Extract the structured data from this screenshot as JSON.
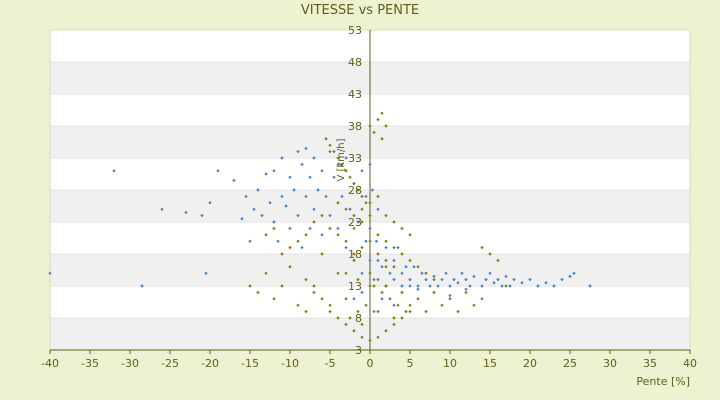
{
  "chart_data": {
    "type": "scatter",
    "title": "VITESSE vs PENTE",
    "xlabel": "Pente [%]",
    "ylabel": "V [km/h]",
    "xlim": [
      -40,
      40
    ],
    "ylim": [
      3,
      53
    ],
    "x_ticks": [
      -40,
      -35,
      -30,
      -25,
      -20,
      -15,
      -10,
      -5,
      0,
      5,
      10,
      15,
      20,
      25,
      30,
      35,
      40
    ],
    "y_ticks": [
      3,
      8,
      13,
      18,
      23,
      28,
      33,
      38,
      43,
      48,
      53
    ],
    "x_tick_labels": [
      "-40",
      "-35",
      "-30",
      "-25",
      "-20",
      "-15",
      "-10",
      "-5",
      "0",
      "5",
      "10",
      "15",
      "20",
      "25",
      "30",
      "35",
      "40"
    ],
    "y_tick_labels": [
      "3",
      "8",
      "13",
      "18",
      "23",
      "28",
      "33",
      "38",
      "43",
      "48",
      "53"
    ],
    "grid": "horizontal bands",
    "band_colors": [
      "#ffffff",
      "#f0f0f0"
    ],
    "series": [
      {
        "color": "#3d85c6",
        "points": [
          [
            -40,
            15
          ],
          [
            -32,
            31
          ],
          [
            -28.5,
            13
          ],
          [
            -26,
            25
          ],
          [
            -23,
            24.5
          ],
          [
            -21,
            24
          ],
          [
            -20.5,
            15
          ],
          [
            -20,
            26
          ],
          [
            -19,
            31
          ],
          [
            -17,
            29.5
          ],
          [
            -16,
            23.5
          ],
          [
            -15.5,
            27
          ],
          [
            -15,
            20
          ],
          [
            -14.5,
            25
          ],
          [
            -14,
            28
          ],
          [
            -13.5,
            24
          ],
          [
            -13,
            30.5
          ],
          [
            -12.5,
            26
          ],
          [
            -12,
            31
          ],
          [
            -12,
            23
          ],
          [
            -11.5,
            20
          ],
          [
            -11,
            27
          ],
          [
            -11,
            33
          ],
          [
            -10.5,
            25.5
          ],
          [
            -10,
            30
          ],
          [
            -10,
            22
          ],
          [
            -9.5,
            28
          ],
          [
            -9,
            34
          ],
          [
            -9,
            24
          ],
          [
            -8.5,
            32
          ],
          [
            -8.5,
            19
          ],
          [
            -8,
            27
          ],
          [
            -8,
            34.5
          ],
          [
            -7.5,
            30
          ],
          [
            -7.5,
            22
          ],
          [
            -7,
            33
          ],
          [
            -7,
            25
          ],
          [
            -6.5,
            28
          ],
          [
            -6,
            31
          ],
          [
            -6,
            21
          ],
          [
            -5.5,
            27
          ],
          [
            -5,
            34
          ],
          [
            -5,
            24
          ],
          [
            -4.5,
            30
          ],
          [
            -4,
            32
          ],
          [
            -4,
            22
          ],
          [
            -3.5,
            27
          ],
          [
            -3,
            33
          ],
          [
            -3,
            19
          ],
          [
            -2.5,
            25
          ],
          [
            -2,
            29
          ],
          [
            -2,
            17
          ],
          [
            -1.5,
            23
          ],
          [
            -1,
            31
          ],
          [
            -1,
            15
          ],
          [
            -0.5,
            27
          ],
          [
            -0.5,
            20
          ],
          [
            0,
            32
          ],
          [
            0,
            22
          ],
          [
            0,
            17
          ],
          [
            0.3,
            28
          ],
          [
            0.5,
            14
          ],
          [
            0.8,
            20
          ],
          [
            1,
            17
          ],
          [
            1,
            25
          ],
          [
            1.5,
            16
          ],
          [
            2,
            19
          ],
          [
            2,
            13
          ],
          [
            2.5,
            15
          ],
          [
            3,
            17
          ],
          [
            3,
            14
          ],
          [
            3.5,
            19
          ],
          [
            4,
            15
          ],
          [
            4,
            13
          ],
          [
            4.5,
            16
          ],
          [
            5,
            14
          ],
          [
            5,
            13
          ],
          [
            5.5,
            16
          ],
          [
            6,
            13
          ],
          [
            6.5,
            15
          ],
          [
            7,
            14
          ],
          [
            7.5,
            13
          ],
          [
            8,
            14.5
          ],
          [
            8.5,
            13
          ],
          [
            9,
            14
          ],
          [
            9.5,
            15
          ],
          [
            10,
            13
          ],
          [
            10.5,
            14
          ],
          [
            11,
            13.5
          ],
          [
            11.5,
            15
          ],
          [
            12,
            14
          ],
          [
            12.5,
            13
          ],
          [
            13,
            14.5
          ],
          [
            14,
            13
          ],
          [
            14.5,
            14
          ],
          [
            15,
            15
          ],
          [
            15.5,
            13.5
          ],
          [
            16,
            14
          ],
          [
            16.5,
            13
          ],
          [
            17,
            14.5
          ],
          [
            17.5,
            13
          ],
          [
            18,
            14
          ],
          [
            19,
            13.5
          ],
          [
            20,
            14
          ],
          [
            21,
            13
          ],
          [
            22,
            13.5
          ],
          [
            23,
            13
          ],
          [
            24,
            14
          ],
          [
            25,
            14.5
          ],
          [
            25.5,
            15
          ],
          [
            27.5,
            13
          ],
          [
            4,
            12
          ],
          [
            6,
            12.5
          ],
          [
            8,
            12
          ],
          [
            10,
            11.5
          ],
          [
            12,
            12.5
          ],
          [
            14,
            11
          ],
          [
            -1,
            12
          ],
          [
            -2,
            11
          ],
          [
            1.5,
            11
          ],
          [
            3,
            10
          ],
          [
            0.5,
            9
          ]
        ]
      },
      {
        "color": "#808000",
        "points": [
          [
            -5.5,
            36
          ],
          [
            -5,
            35
          ],
          [
            -4.5,
            34
          ],
          [
            -4,
            33
          ],
          [
            -3.5,
            32
          ],
          [
            -3,
            31
          ],
          [
            -2.5,
            30
          ],
          [
            -2,
            29
          ],
          [
            -1.5,
            28
          ],
          [
            -1,
            27
          ],
          [
            -0.5,
            26
          ],
          [
            0,
            38
          ],
          [
            0.5,
            37
          ],
          [
            1,
            39
          ],
          [
            1.5,
            40
          ],
          [
            2,
            38
          ],
          [
            1.5,
            36
          ],
          [
            -15,
            13
          ],
          [
            -14,
            12
          ],
          [
            -13,
            15
          ],
          [
            -12,
            11
          ],
          [
            -11,
            13
          ],
          [
            -10,
            16
          ],
          [
            -9,
            10
          ],
          [
            -8,
            14
          ],
          [
            -7,
            12
          ],
          [
            -6,
            18
          ],
          [
            -5,
            9
          ],
          [
            -4,
            15
          ],
          [
            -3,
            11
          ],
          [
            -2,
            17
          ],
          [
            -1,
            7
          ],
          [
            0,
            13
          ],
          [
            1,
            9
          ],
          [
            2,
            16
          ],
          [
            3,
            8
          ],
          [
            4,
            12
          ],
          [
            5,
            10
          ],
          [
            6,
            11
          ],
          [
            7,
            9
          ],
          [
            8,
            12
          ],
          [
            9,
            10
          ],
          [
            10,
            11
          ],
          [
            11,
            9
          ],
          [
            12,
            12
          ],
          [
            13,
            10
          ],
          [
            14,
            19
          ],
          [
            15,
            18
          ],
          [
            16,
            17
          ],
          [
            17,
            13
          ],
          [
            -13,
            21
          ],
          [
            -12,
            22
          ],
          [
            -11,
            18
          ],
          [
            -10,
            19
          ],
          [
            -9,
            20
          ],
          [
            -8,
            21
          ],
          [
            -7,
            23
          ],
          [
            -6,
            24
          ],
          [
            -5,
            22
          ],
          [
            -4,
            21
          ],
          [
            -3,
            20
          ],
          [
            -2,
            22
          ],
          [
            -1,
            23
          ],
          [
            0,
            24
          ],
          [
            1,
            21
          ],
          [
            2,
            20
          ],
          [
            3,
            19
          ],
          [
            4,
            18
          ],
          [
            5,
            17
          ],
          [
            6,
            16
          ],
          [
            7,
            15
          ],
          [
            8,
            14
          ],
          [
            -3,
            7
          ],
          [
            -2,
            6
          ],
          [
            -1,
            5
          ],
          [
            0,
            4.5
          ],
          [
            1,
            5
          ],
          [
            2,
            6
          ],
          [
            3,
            7
          ],
          [
            4,
            8
          ],
          [
            5,
            9
          ],
          [
            -4,
            8
          ],
          [
            -5,
            10
          ],
          [
            -6,
            11
          ],
          [
            -7,
            13
          ],
          [
            -8,
            9
          ],
          [
            -2,
            18
          ],
          [
            -1,
            19
          ],
          [
            0,
            20
          ],
          [
            1,
            18
          ],
          [
            2,
            17
          ],
          [
            3,
            16
          ],
          [
            -3,
            15
          ],
          [
            -1.5,
            14
          ],
          [
            0.5,
            13
          ],
          [
            1.5,
            12
          ],
          [
            2.5,
            11
          ],
          [
            3.5,
            10
          ],
          [
            4.5,
            9
          ],
          [
            -0.5,
            10
          ],
          [
            -1.5,
            9
          ],
          [
            -2.5,
            8
          ],
          [
            0,
            15
          ],
          [
            1,
            14
          ],
          [
            2,
            13
          ],
          [
            -4,
            26
          ],
          [
            -3,
            25
          ],
          [
            -2,
            24
          ],
          [
            -1,
            25
          ],
          [
            0,
            26
          ],
          [
            1,
            27
          ],
          [
            2,
            24
          ],
          [
            3,
            23
          ],
          [
            4,
            22
          ],
          [
            5,
            21
          ]
        ]
      }
    ]
  }
}
